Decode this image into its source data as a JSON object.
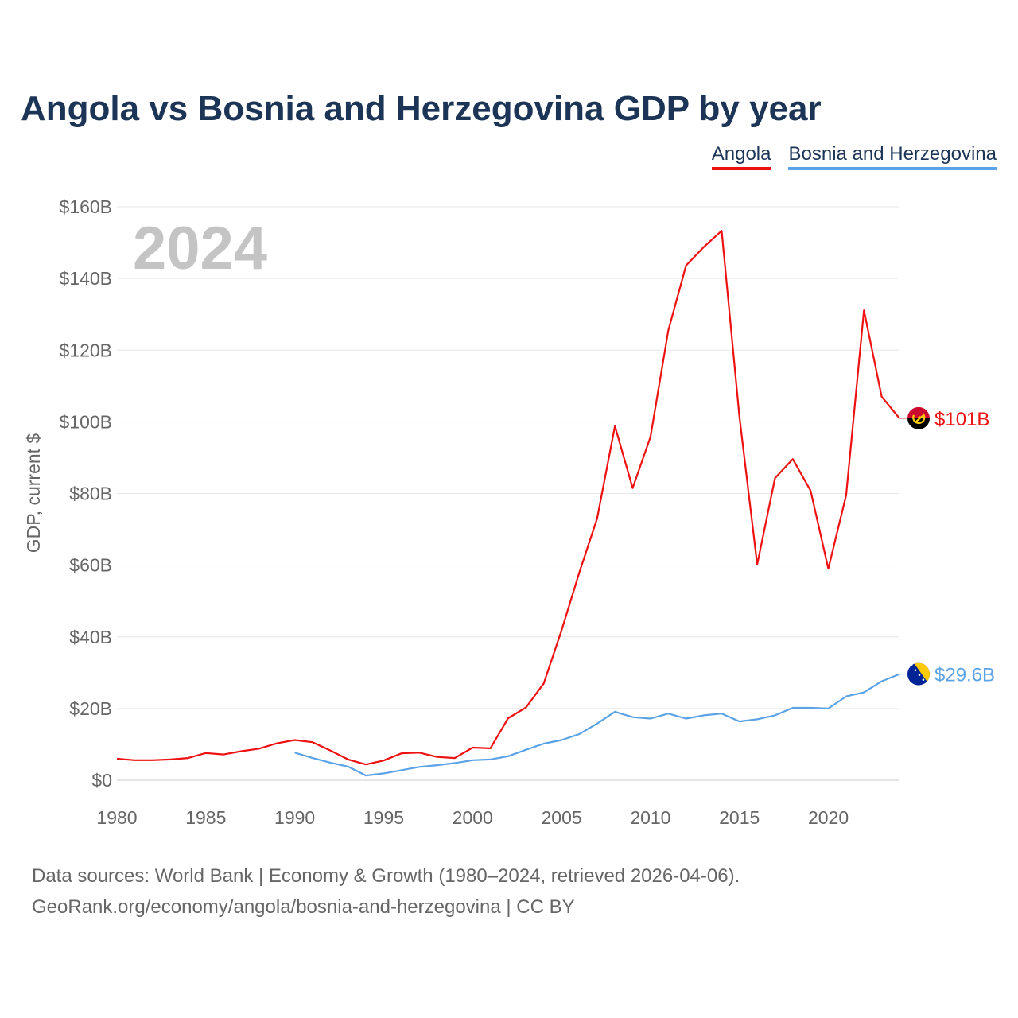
{
  "title": "Angola vs Bosnia and Herzegovina GDP by year",
  "legend": [
    {
      "label": "Angola",
      "color": "#ee1111"
    },
    {
      "label": "Bosnia and Herzegovina",
      "color": "#5ba3e6"
    }
  ],
  "footer": {
    "line1": "Data sources: World Bank | Economy & Growth (1980–2024, retrieved 2026-04-06).",
    "line2": "GeoRank.org/economy/angola/bosnia-and-herzegovina | CC BY"
  },
  "chart_data": {
    "type": "line",
    "title": "Angola vs Bosnia and Herzegovina GDP by year",
    "year_label": "2024",
    "xlabel": "",
    "ylabel": "GDP, current $",
    "xlim": [
      1980,
      2024
    ],
    "ylim": [
      0,
      160
    ],
    "x_ticks": [
      1980,
      1985,
      1990,
      1995,
      2000,
      2005,
      2010,
      2015,
      2020
    ],
    "y_ticks": [
      0,
      20,
      40,
      60,
      80,
      100,
      120,
      140,
      160
    ],
    "y_tick_labels": [
      "$0",
      "$20B",
      "$40B",
      "$60B",
      "$80B",
      "$100B",
      "$120B",
      "$140B",
      "$160B"
    ],
    "grid": true,
    "legend_position": "top-right",
    "series": [
      {
        "name": "Angola",
        "color": "#ee1111",
        "end_label": "$101B",
        "flag": "angola",
        "x": [
          1980,
          1981,
          1982,
          1983,
          1984,
          1985,
          1986,
          1987,
          1988,
          1989,
          1990,
          1991,
          1992,
          1993,
          1994,
          1995,
          1996,
          1997,
          1998,
          1999,
          2000,
          2001,
          2002,
          2003,
          2004,
          2005,
          2006,
          2007,
          2008,
          2009,
          2010,
          2011,
          2012,
          2013,
          2014,
          2015,
          2016,
          2017,
          2018,
          2019,
          2020,
          2021,
          2022,
          2023,
          2024
        ],
        "values": [
          6.0,
          5.6,
          5.6,
          5.8,
          6.2,
          7.6,
          7.2,
          8.1,
          8.8,
          10.3,
          11.2,
          10.6,
          8.3,
          5.8,
          4.4,
          5.5,
          7.5,
          7.7,
          6.5,
          6.2,
          9.1,
          8.9,
          17.3,
          20.3,
          27.0,
          41.8,
          58.0,
          73.0,
          98.8,
          81.5,
          95.8,
          125.5,
          143.6,
          148.8,
          153.3,
          101.5,
          60.2,
          84.3,
          89.6,
          80.8,
          59.0,
          79.5,
          131.1,
          107.0,
          101.0
        ]
      },
      {
        "name": "Bosnia and Herzegovina",
        "color": "#5ba3e6",
        "end_label": "$29.6B",
        "flag": "bosnia",
        "x": [
          1990,
          1991,
          1992,
          1993,
          1994,
          1995,
          1996,
          1997,
          1998,
          1999,
          2000,
          2001,
          2002,
          2003,
          2004,
          2005,
          2006,
          2007,
          2008,
          2009,
          2010,
          2011,
          2012,
          2013,
          2014,
          2015,
          2016,
          2017,
          2018,
          2019,
          2020,
          2021,
          2022,
          2023,
          2024
        ],
        "values": [
          7.7,
          6.2,
          4.9,
          3.8,
          1.3,
          1.9,
          2.8,
          3.7,
          4.2,
          4.8,
          5.6,
          5.8,
          6.7,
          8.5,
          10.2,
          11.2,
          12.9,
          15.8,
          19.1,
          17.6,
          17.2,
          18.6,
          17.2,
          18.1,
          18.6,
          16.4,
          17.0,
          18.1,
          20.2,
          20.2,
          20.0,
          23.4,
          24.5,
          27.6,
          29.6
        ]
      }
    ]
  }
}
